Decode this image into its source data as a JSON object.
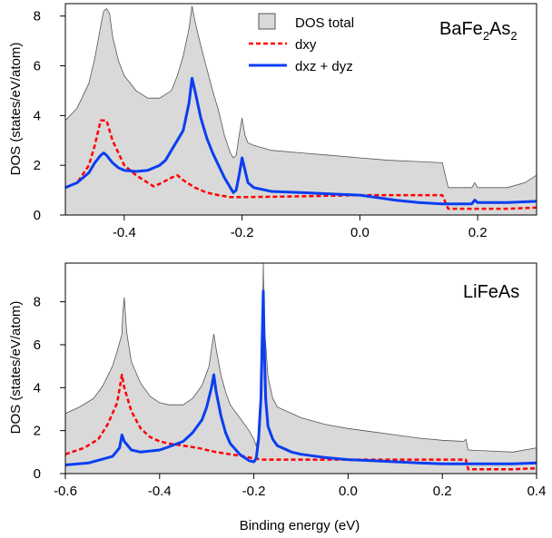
{
  "chart_data": [
    {
      "type": "area",
      "title": "BaFe2As2",
      "title_parts": {
        "base1": "BaFe",
        "sub1": "2",
        "base2": "As",
        "sub2": "2"
      },
      "xlabel": "",
      "ylabel": "DOS (states/eV/atom)",
      "xlim": [
        -0.5,
        0.3
      ],
      "ylim": [
        0,
        8.5
      ],
      "xticks": [
        -0.4,
        -0.2,
        0.0,
        0.2
      ],
      "xtick_labels": [
        "-0.4",
        "-0.2",
        "0.0",
        "0.2"
      ],
      "yticks": [
        0,
        2,
        4,
        6,
        8
      ],
      "ytick_labels": [
        "0",
        "2",
        "4",
        "6",
        "8"
      ],
      "grid": false,
      "legend_position": "top-center",
      "series": [
        {
          "name": "DOS total",
          "style": "filled-area",
          "color": "#d9d9d9",
          "edge_color": "#555555",
          "points": [
            [
              -0.5,
              3.8
            ],
            [
              -0.48,
              4.3
            ],
            [
              -0.46,
              5.3
            ],
            [
              -0.45,
              6.3
            ],
            [
              -0.44,
              7.6
            ],
            [
              -0.435,
              8.2
            ],
            [
              -0.43,
              8.3
            ],
            [
              -0.425,
              8.1
            ],
            [
              -0.42,
              7.2
            ],
            [
              -0.41,
              6.2
            ],
            [
              -0.4,
              5.6
            ],
            [
              -0.38,
              5.0
            ],
            [
              -0.36,
              4.7
            ],
            [
              -0.34,
              4.7
            ],
            [
              -0.32,
              5.0
            ],
            [
              -0.31,
              5.6
            ],
            [
              -0.3,
              6.4
            ],
            [
              -0.29,
              7.5
            ],
            [
              -0.285,
              8.4
            ],
            [
              -0.28,
              7.8
            ],
            [
              -0.27,
              6.8
            ],
            [
              -0.26,
              5.9
            ],
            [
              -0.25,
              5.0
            ],
            [
              -0.24,
              4.2
            ],
            [
              -0.23,
              3.2
            ],
            [
              -0.22,
              2.5
            ],
            [
              -0.215,
              2.3
            ],
            [
              -0.21,
              2.4
            ],
            [
              -0.205,
              3.2
            ],
            [
              -0.2,
              3.9
            ],
            [
              -0.195,
              3.2
            ],
            [
              -0.19,
              2.9
            ],
            [
              -0.18,
              2.8
            ],
            [
              -0.15,
              2.6
            ],
            [
              -0.1,
              2.5
            ],
            [
              -0.05,
              2.4
            ],
            [
              0.0,
              2.3
            ],
            [
              0.05,
              2.2
            ],
            [
              0.1,
              2.15
            ],
            [
              0.14,
              2.1
            ],
            [
              0.15,
              1.1
            ],
            [
              0.19,
              1.1
            ],
            [
              0.195,
              1.3
            ],
            [
              0.2,
              1.1
            ],
            [
              0.25,
              1.1
            ],
            [
              0.28,
              1.3
            ],
            [
              0.3,
              1.6
            ]
          ]
        },
        {
          "name": "dxy",
          "style": "dashed",
          "color": "#ff0000",
          "points": [
            [
              -0.5,
              1.1
            ],
            [
              -0.48,
              1.3
            ],
            [
              -0.46,
              2.0
            ],
            [
              -0.45,
              2.8
            ],
            [
              -0.44,
              3.8
            ],
            [
              -0.43,
              3.8
            ],
            [
              -0.42,
              3.0
            ],
            [
              -0.4,
              2.0
            ],
            [
              -0.38,
              1.6
            ],
            [
              -0.36,
              1.3
            ],
            [
              -0.35,
              1.15
            ],
            [
              -0.34,
              1.25
            ],
            [
              -0.32,
              1.5
            ],
            [
              -0.31,
              1.6
            ],
            [
              -0.3,
              1.4
            ],
            [
              -0.28,
              1.1
            ],
            [
              -0.26,
              0.9
            ],
            [
              -0.24,
              0.8
            ],
            [
              -0.22,
              0.72
            ],
            [
              -0.2,
              0.72
            ],
            [
              -0.1,
              0.75
            ],
            [
              0.0,
              0.8
            ],
            [
              0.05,
              0.8
            ],
            [
              0.1,
              0.8
            ],
            [
              0.14,
              0.8
            ],
            [
              0.15,
              0.25
            ],
            [
              0.2,
              0.25
            ],
            [
              0.25,
              0.25
            ],
            [
              0.3,
              0.3
            ]
          ]
        },
        {
          "name": "dxz + dyz",
          "style": "solid",
          "color": "#0a3ef0",
          "points": [
            [
              -0.5,
              1.1
            ],
            [
              -0.48,
              1.3
            ],
            [
              -0.46,
              1.7
            ],
            [
              -0.45,
              2.1
            ],
            [
              -0.44,
              2.4
            ],
            [
              -0.435,
              2.5
            ],
            [
              -0.43,
              2.4
            ],
            [
              -0.42,
              2.1
            ],
            [
              -0.41,
              1.9
            ],
            [
              -0.4,
              1.8
            ],
            [
              -0.38,
              1.75
            ],
            [
              -0.36,
              1.8
            ],
            [
              -0.34,
              2.0
            ],
            [
              -0.33,
              2.2
            ],
            [
              -0.32,
              2.6
            ],
            [
              -0.31,
              3.0
            ],
            [
              -0.3,
              3.4
            ],
            [
              -0.29,
              4.5
            ],
            [
              -0.285,
              5.5
            ],
            [
              -0.28,
              5.0
            ],
            [
              -0.27,
              3.9
            ],
            [
              -0.26,
              3.1
            ],
            [
              -0.25,
              2.5
            ],
            [
              -0.24,
              2.0
            ],
            [
              -0.23,
              1.5
            ],
            [
              -0.22,
              1.1
            ],
            [
              -0.215,
              0.9
            ],
            [
              -0.21,
              1.0
            ],
            [
              -0.205,
              1.6
            ],
            [
              -0.2,
              2.3
            ],
            [
              -0.195,
              1.8
            ],
            [
              -0.19,
              1.3
            ],
            [
              -0.18,
              1.1
            ],
            [
              -0.15,
              0.95
            ],
            [
              -0.1,
              0.9
            ],
            [
              -0.05,
              0.85
            ],
            [
              0.0,
              0.8
            ],
            [
              0.03,
              0.7
            ],
            [
              0.06,
              0.6
            ],
            [
              0.1,
              0.5
            ],
            [
              0.14,
              0.45
            ],
            [
              0.19,
              0.45
            ],
            [
              0.195,
              0.6
            ],
            [
              0.2,
              0.5
            ],
            [
              0.25,
              0.5
            ],
            [
              0.3,
              0.55
            ]
          ]
        }
      ]
    },
    {
      "type": "area",
      "title": "LiFeAs",
      "xlabel": "Binding energy (eV)",
      "ylabel": "DOS (states/eV/atom)",
      "xlim": [
        -0.6,
        0.4
      ],
      "ylim": [
        0,
        9.8
      ],
      "xticks": [
        -0.6,
        -0.4,
        -0.2,
        0.0,
        0.2,
        0.4
      ],
      "xtick_labels": [
        "-0.6",
        "-0.4",
        "-0.2",
        "0.0",
        "0.2",
        "0.4"
      ],
      "yticks": [
        0,
        2,
        4,
        6,
        8
      ],
      "ytick_labels": [
        "0",
        "2",
        "4",
        "6",
        "8"
      ],
      "grid": false,
      "series": [
        {
          "name": "DOS total",
          "style": "filled-area",
          "color": "#d9d9d9",
          "edge_color": "#555555",
          "points": [
            [
              -0.6,
              2.8
            ],
            [
              -0.57,
              3.1
            ],
            [
              -0.54,
              3.5
            ],
            [
              -0.52,
              4.1
            ],
            [
              -0.5,
              5.0
            ],
            [
              -0.49,
              5.7
            ],
            [
              -0.48,
              6.5
            ],
            [
              -0.478,
              7.5
            ],
            [
              -0.475,
              8.2
            ],
            [
              -0.47,
              6.6
            ],
            [
              -0.46,
              5.2
            ],
            [
              -0.44,
              4.2
            ],
            [
              -0.42,
              3.6
            ],
            [
              -0.4,
              3.3
            ],
            [
              -0.38,
              3.2
            ],
            [
              -0.35,
              3.2
            ],
            [
              -0.33,
              3.5
            ],
            [
              -0.31,
              4.1
            ],
            [
              -0.295,
              5.0
            ],
            [
              -0.29,
              5.8
            ],
            [
              -0.285,
              6.5
            ],
            [
              -0.28,
              5.8
            ],
            [
              -0.27,
              4.6
            ],
            [
              -0.26,
              3.8
            ],
            [
              -0.25,
              3.2
            ],
            [
              -0.23,
              2.6
            ],
            [
              -0.21,
              2.0
            ],
            [
              -0.2,
              1.6
            ],
            [
              -0.195,
              1.3
            ],
            [
              -0.19,
              1.8
            ],
            [
              -0.185,
              3.0
            ],
            [
              -0.182,
              6.0
            ],
            [
              -0.18,
              9.8
            ],
            [
              -0.178,
              7.0
            ],
            [
              -0.17,
              4.5
            ],
            [
              -0.16,
              3.5
            ],
            [
              -0.15,
              3.1
            ],
            [
              -0.1,
              2.6
            ],
            [
              -0.05,
              2.3
            ],
            [
              0.0,
              2.1
            ],
            [
              0.05,
              1.95
            ],
            [
              0.1,
              1.8
            ],
            [
              0.15,
              1.65
            ],
            [
              0.2,
              1.55
            ],
            [
              0.245,
              1.5
            ],
            [
              0.25,
              1.6
            ],
            [
              0.255,
              1.1
            ],
            [
              0.3,
              1.05
            ],
            [
              0.35,
              1.0
            ],
            [
              0.4,
              1.2
            ]
          ]
        },
        {
          "name": "dxy",
          "style": "dashed",
          "color": "#ff0000",
          "points": [
            [
              -0.6,
              0.9
            ],
            [
              -0.56,
              1.2
            ],
            [
              -0.53,
              1.6
            ],
            [
              -0.51,
              2.3
            ],
            [
              -0.49,
              3.3
            ],
            [
              -0.48,
              4.6
            ],
            [
              -0.475,
              4.0
            ],
            [
              -0.46,
              2.9
            ],
            [
              -0.44,
              2.1
            ],
            [
              -0.42,
              1.7
            ],
            [
              -0.4,
              1.5
            ],
            [
              -0.38,
              1.4
            ],
            [
              -0.35,
              1.3
            ],
            [
              -0.32,
              1.2
            ],
            [
              -0.3,
              1.1
            ],
            [
              -0.28,
              1.0
            ],
            [
              -0.25,
              0.9
            ],
            [
              -0.22,
              0.8
            ],
            [
              -0.2,
              0.7
            ],
            [
              -0.18,
              0.65
            ],
            [
              -0.1,
              0.65
            ],
            [
              0.0,
              0.65
            ],
            [
              0.1,
              0.65
            ],
            [
              0.2,
              0.65
            ],
            [
              0.25,
              0.65
            ],
            [
              0.255,
              0.2
            ],
            [
              0.3,
              0.2
            ],
            [
              0.35,
              0.2
            ],
            [
              0.4,
              0.25
            ]
          ]
        },
        {
          "name": "dxz + dyz",
          "style": "solid",
          "color": "#0a3ef0",
          "points": [
            [
              -0.6,
              0.4
            ],
            [
              -0.55,
              0.5
            ],
            [
              -0.5,
              0.8
            ],
            [
              -0.485,
              1.2
            ],
            [
              -0.48,
              1.8
            ],
            [
              -0.475,
              1.5
            ],
            [
              -0.46,
              1.1
            ],
            [
              -0.44,
              1.0
            ],
            [
              -0.42,
              1.05
            ],
            [
              -0.4,
              1.1
            ],
            [
              -0.38,
              1.25
            ],
            [
              -0.35,
              1.5
            ],
            [
              -0.33,
              1.9
            ],
            [
              -0.31,
              2.5
            ],
            [
              -0.3,
              3.1
            ],
            [
              -0.29,
              4.0
            ],
            [
              -0.285,
              4.6
            ],
            [
              -0.28,
              3.8
            ],
            [
              -0.27,
              2.7
            ],
            [
              -0.26,
              1.9
            ],
            [
              -0.25,
              1.4
            ],
            [
              -0.23,
              0.9
            ],
            [
              -0.21,
              0.6
            ],
            [
              -0.2,
              0.55
            ],
            [
              -0.195,
              0.7
            ],
            [
              -0.19,
              1.6
            ],
            [
              -0.185,
              3.5
            ],
            [
              -0.182,
              6.5
            ],
            [
              -0.18,
              8.5
            ],
            [
              -0.178,
              6.0
            ],
            [
              -0.175,
              3.5
            ],
            [
              -0.17,
              2.2
            ],
            [
              -0.16,
              1.6
            ],
            [
              -0.15,
              1.3
            ],
            [
              -0.12,
              1.0
            ],
            [
              -0.1,
              0.9
            ],
            [
              -0.05,
              0.75
            ],
            [
              0.0,
              0.65
            ],
            [
              0.05,
              0.6
            ],
            [
              0.1,
              0.55
            ],
            [
              0.15,
              0.5
            ],
            [
              0.2,
              0.45
            ],
            [
              0.25,
              0.45
            ],
            [
              0.3,
              0.45
            ],
            [
              0.35,
              0.45
            ],
            [
              0.4,
              0.5
            ]
          ]
        }
      ]
    }
  ]
}
